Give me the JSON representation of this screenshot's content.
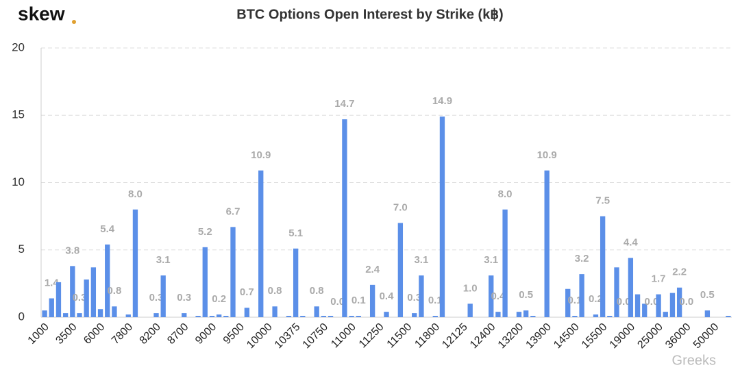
{
  "chart_data": {
    "type": "bar",
    "title": "BTC Options Open Interest by Strike (k฿)",
    "logo": "skew",
    "watermark": "Greeks",
    "categories": [
      "1000",
      null,
      null,
      null,
      "3500",
      null,
      null,
      null,
      "6000",
      null,
      null,
      null,
      "7800",
      null,
      null,
      null,
      "8200",
      null,
      null,
      null,
      "8700",
      null,
      null,
      null,
      "9000",
      null,
      null,
      null,
      "9500",
      null,
      null,
      null,
      "10000",
      null,
      null,
      null,
      "10375",
      null,
      null,
      null,
      "10750",
      null,
      null,
      null,
      "11000",
      null,
      null,
      null,
      "11250",
      null,
      null,
      null,
      "11500",
      null,
      null,
      null,
      "11800",
      null,
      null,
      null,
      "12125",
      null,
      null,
      null,
      "12400",
      null,
      null,
      null,
      "13200",
      null,
      null,
      null,
      "13900",
      null,
      null,
      null,
      "14500",
      null,
      null,
      null,
      "15500",
      null,
      null,
      null,
      "19000",
      null,
      null,
      null,
      "25000",
      null,
      null,
      null,
      "36000",
      null,
      null,
      null,
      "50000",
      null,
      null
    ],
    "values": [
      0.5,
      1.4,
      2.6,
      0.3,
      3.8,
      0.3,
      2.8,
      3.7,
      0.6,
      5.4,
      0.8,
      0,
      0.2,
      8.0,
      0,
      0,
      0.3,
      3.1,
      0,
      0,
      0.3,
      0,
      0.1,
      5.2,
      0.1,
      0.2,
      0.1,
      6.7,
      0,
      0.7,
      0,
      10.9,
      0,
      0.8,
      0,
      0.1,
      5.1,
      0.1,
      0,
      0.8,
      0.1,
      0.1,
      0,
      14.7,
      0.1,
      0.1,
      0,
      2.4,
      0,
      0.4,
      0,
      7.0,
      0,
      0.3,
      3.1,
      0,
      0.1,
      14.9,
      0,
      0,
      0,
      1.0,
      0,
      0,
      3.1,
      0.4,
      8.0,
      0,
      0.4,
      0.5,
      0.1,
      0,
      10.9,
      0,
      0,
      2.1,
      0.1,
      3.2,
      0,
      0.2,
      7.5,
      0.1,
      3.7,
      0,
      4.4,
      1.7,
      1.0,
      0,
      1.7,
      0.4,
      1.8,
      2.2,
      0,
      0,
      0,
      0.5,
      0,
      0,
      0.1
    ],
    "value_labels": [
      null,
      "1.4",
      null,
      null,
      "3.8",
      "0.3",
      null,
      null,
      null,
      "5.4",
      "0.8",
      null,
      null,
      "8.0",
      null,
      null,
      "0.3",
      "3.1",
      null,
      null,
      "0.3",
      null,
      null,
      "5.2",
      null,
      "0.2",
      null,
      "6.7",
      null,
      "0.7",
      null,
      "10.9",
      null,
      "0.8",
      null,
      null,
      "5.1",
      null,
      null,
      "0.8",
      null,
      null,
      "0.0",
      "14.7",
      null,
      "0.1",
      null,
      "2.4",
      null,
      "0.4",
      null,
      "7.0",
      null,
      "0.3",
      "3.1",
      null,
      "0.1",
      "14.9",
      null,
      null,
      null,
      "1.0",
      null,
      null,
      "3.1",
      "0.4",
      "8.0",
      null,
      null,
      "0.5",
      null,
      null,
      "10.9",
      null,
      null,
      null,
      "0.1",
      "3.2",
      null,
      "0.2",
      "7.5",
      null,
      null,
      "0.0",
      "4.4",
      null,
      null,
      "0.0",
      "1.7",
      null,
      null,
      "2.2",
      "0.0",
      null,
      null,
      "0.5",
      null,
      null,
      null
    ],
    "color": "#5b8fe8",
    "ylim": [
      0,
      20
    ],
    "yticks": [
      0,
      5,
      10,
      15,
      20
    ],
    "grid": true
  }
}
